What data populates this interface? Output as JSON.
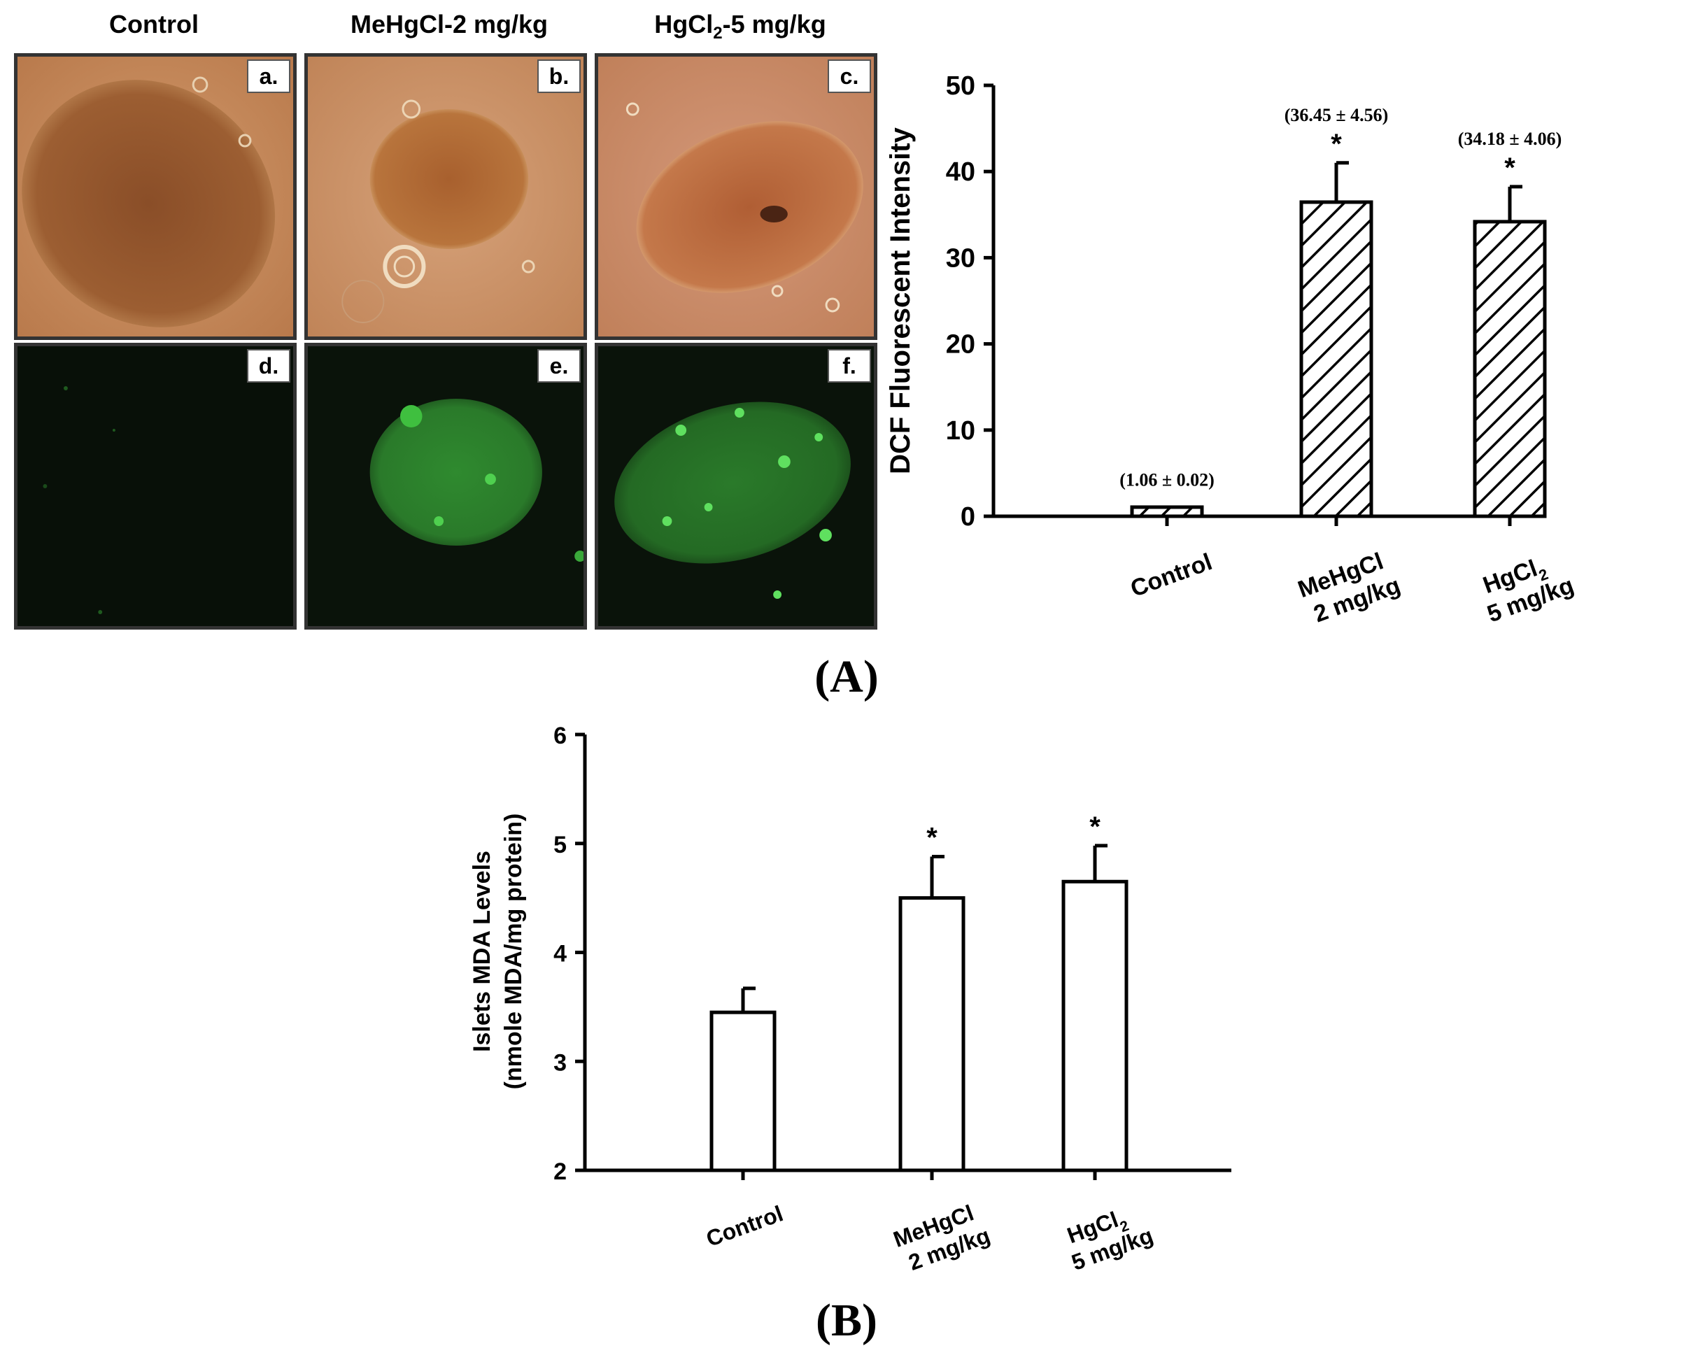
{
  "micrographs": {
    "columns": [
      {
        "label": "Control"
      },
      {
        "label_main": "MeHgCl-2 mg/kg"
      },
      {
        "label_pre": "HgCl",
        "label_sub": "2",
        "label_post": "-5 mg/kg"
      }
    ],
    "panels": [
      {
        "letter": "a.",
        "type": "brightfield"
      },
      {
        "letter": "b.",
        "type": "brightfield"
      },
      {
        "letter": "c.",
        "type": "brightfield"
      },
      {
        "letter": "d.",
        "type": "fluorescence"
      },
      {
        "letter": "e.",
        "type": "fluorescence"
      },
      {
        "letter": "f.",
        "type": "fluorescence"
      }
    ],
    "colors": {
      "brightfield_bg": "#c98a5c",
      "islet": "#9a5a2e",
      "fluorescence_bg": "#0a120a",
      "fluorescence_glow": "#3fa83f"
    }
  },
  "figure_labels": {
    "a": "(A)",
    "b": "(B)"
  },
  "chart_data": [
    {
      "type": "bar",
      "panel": "A",
      "ylabel": "DCF Fluorescent Intensity",
      "ylim": [
        0,
        50
      ],
      "yticks": [
        0,
        10,
        20,
        30,
        40,
        50
      ],
      "categories": [
        {
          "line1": "Control",
          "line2": "",
          "line2_pre": "",
          "line2_sub": ""
        },
        {
          "line1": "MeHgCl",
          "line2": "2 mg/kg",
          "line1_pre": "MeHgCl",
          "line1_sub": ""
        },
        {
          "line1": "HgCl",
          "line1_sub": "2",
          "line2": "5 mg/kg"
        }
      ],
      "values": [
        1.06,
        36.45,
        34.18
      ],
      "errors": [
        0.02,
        4.56,
        4.06
      ],
      "annotations": [
        "(1.06 ± 0.02)",
        "(36.45 ± 4.56)",
        "(34.18 ± 4.06)"
      ],
      "significance": [
        "",
        "*",
        "*"
      ],
      "bar_fill": "hatched",
      "grid": false
    },
    {
      "type": "bar",
      "panel": "B",
      "ylabel_line1": "Islets MDA Levels",
      "ylabel_line2": "(nmole MDA/mg protein)",
      "ylim": [
        2,
        6
      ],
      "yticks": [
        2,
        3,
        4,
        5,
        6
      ],
      "categories": [
        {
          "line1": "Control",
          "line2": ""
        },
        {
          "line1": "MeHgCl",
          "line1_sub": "",
          "line2": "2 mg/kg"
        },
        {
          "line1": "HgCl",
          "line1_sub": "2",
          "line2": "5 mg/kg"
        }
      ],
      "values": [
        3.45,
        4.5,
        4.65
      ],
      "errors": [
        0.22,
        0.38,
        0.33
      ],
      "significance": [
        "",
        "*",
        "*"
      ],
      "bar_fill": "white",
      "grid": false
    }
  ]
}
